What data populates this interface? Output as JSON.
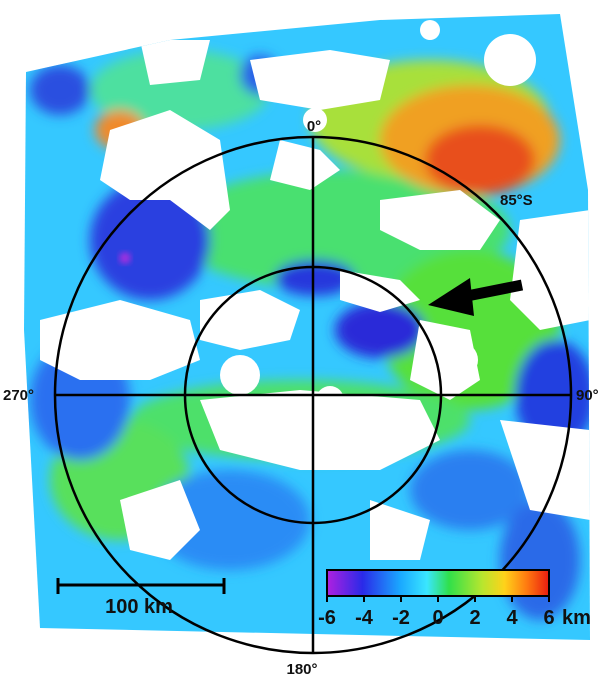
{
  "map": {
    "polar_labels": {
      "north": "0°",
      "east": "90°",
      "south": "180°",
      "west": "270°",
      "latitude": "85°S"
    },
    "scale_bar": {
      "label": "100 km"
    },
    "color_bar": {
      "ticks": [
        "-6",
        "-4",
        "-2",
        "0",
        "2",
        "4",
        "6"
      ],
      "unit": "km",
      "colors": [
        "#9b1fd9",
        "#2b2be6",
        "#19a6ff",
        "#3de3ff",
        "#33e04a",
        "#b6e62e",
        "#ffd21a",
        "#ff7a10",
        "#e81c10"
      ]
    },
    "colors": {
      "deep": "#2835d8",
      "low": "#1c8cff",
      "mid_low": "#35cfff",
      "mid": "#3fe58a",
      "green": "#56e03a",
      "high": "#f0a020",
      "peak": "#e83a12",
      "no_data": "#ffffff"
    }
  }
}
